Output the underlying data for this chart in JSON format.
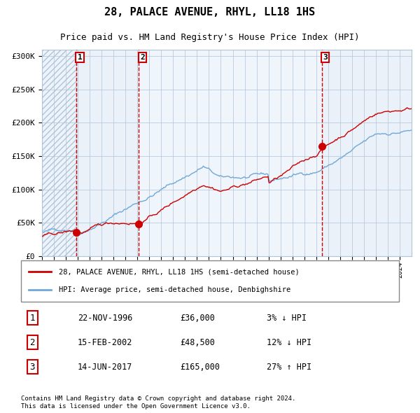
{
  "title": "28, PALACE AVENUE, RHYL, LL18 1HS",
  "subtitle": "Price paid vs. HM Land Registry's House Price Index (HPI)",
  "legend_line1": "28, PALACE AVENUE, RHYL, LL18 1HS (semi-detached house)",
  "legend_line2": "HPI: Average price, semi-detached house, Denbighshire",
  "sale1_date": "22-NOV-1996",
  "sale1_price": 36000,
  "sale1_hpi": "3% ↓ HPI",
  "sale2_date": "15-FEB-2002",
  "sale2_price": 48500,
  "sale2_hpi": "12% ↓ HPI",
  "sale3_date": "14-JUN-2017",
  "sale3_price": 165000,
  "sale3_hpi": "27% ↑ HPI",
  "footnote": "Contains HM Land Registry data © Crown copyright and database right 2024.\nThis data is licensed under the Open Government Licence v3.0.",
  "hpi_color": "#6fa8d8",
  "price_color": "#cc0000",
  "sale_dot_color": "#cc0000",
  "vline_color": "#cc0000",
  "bg_shade_color": "#dce9f5",
  "grid_color": "#b0c4d8",
  "ylim": [
    0,
    310000
  ],
  "yticks": [
    0,
    50000,
    100000,
    150000,
    200000,
    250000,
    300000
  ],
  "start_year": 1994,
  "end_year": 2024
}
